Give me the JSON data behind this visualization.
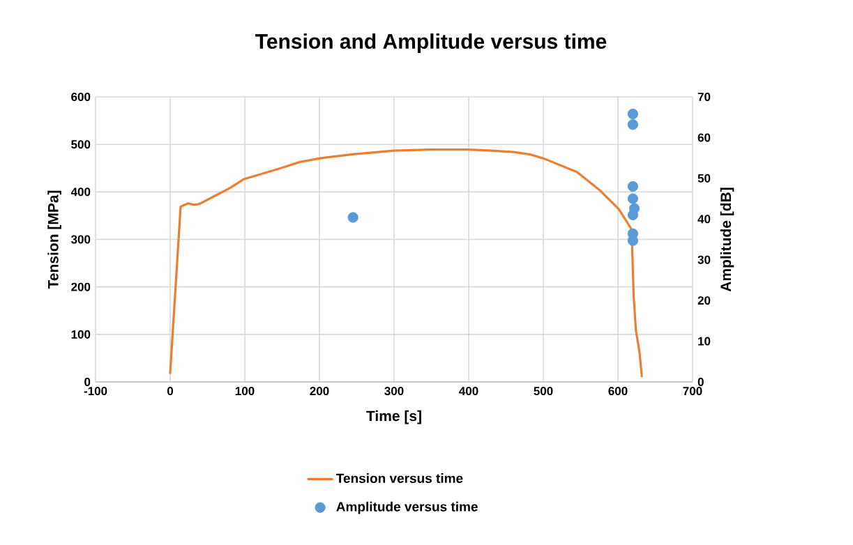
{
  "chart_data": {
    "type": "line",
    "title": "Tension and Amplitude versus time",
    "xlabel": "Time [s]",
    "ylabel": "Tension  [MPa]",
    "y2label": "Amplitude [dB]",
    "xlim": [
      -100,
      700
    ],
    "xticks": [
      -100,
      0,
      100,
      200,
      300,
      400,
      500,
      600,
      700
    ],
    "ylim": [
      0,
      600
    ],
    "yticks": [
      0,
      100,
      200,
      300,
      400,
      500,
      600
    ],
    "y2lim": [
      0,
      70
    ],
    "y2ticks": [
      0,
      10,
      20,
      30,
      40,
      50,
      60,
      70
    ],
    "grid": true,
    "legend": "bottom",
    "series": [
      {
        "name": "Tension versus time",
        "marker": "none",
        "color": "#ed7d31",
        "x": [
          0,
          14,
          24,
          31,
          37,
          41,
          59,
          80,
          99,
          146,
          174,
          202,
          250,
          300,
          350,
          400,
          430,
          460,
          482,
          501,
          545,
          576,
          601,
          618,
          619,
          621,
          624,
          629,
          632
        ],
        "values": [
          19,
          369,
          376,
          373,
          374,
          376,
          391,
          408,
          427,
          449,
          463,
          471,
          480,
          487,
          489,
          489,
          487,
          484,
          479,
          470,
          442,
          403,
          364,
          322,
          286,
          183,
          110,
          61,
          12
        ]
      },
      {
        "name": "Amplitude versus time",
        "type": "scatter",
        "marker": "circle",
        "axis": "y2",
        "color": "#5b9bd5",
        "x": [
          245,
          620,
          620,
          620,
          620,
          622,
          620,
          620,
          620
        ],
        "values": [
          40.4,
          65.8,
          63.2,
          48.0,
          45.0,
          42.6,
          41.0,
          36.4,
          34.7
        ]
      }
    ]
  }
}
